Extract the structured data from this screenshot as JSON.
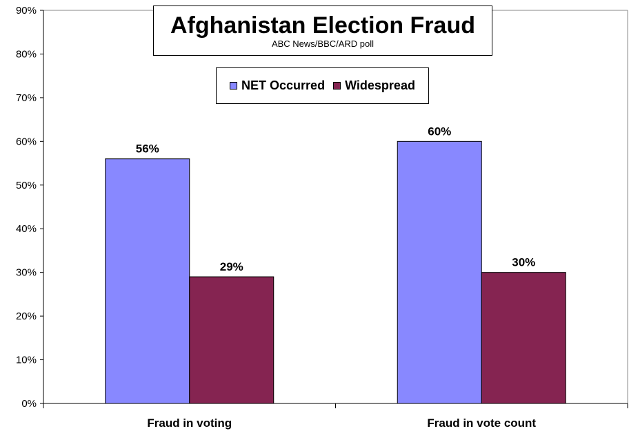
{
  "chart_data": {
    "type": "bar",
    "title": "Afghanistan Election Fraud",
    "subtitle": "ABC News/BBC/ARD poll",
    "categories": [
      "Fraud in voting",
      "Fraud in vote count"
    ],
    "series": [
      {
        "name": "NET Occurred",
        "values": [
          56,
          60
        ],
        "labels": [
          "56%",
          "60%"
        ],
        "color": "#8888ff"
      },
      {
        "name": "Widespread",
        "values": [
          29,
          30
        ],
        "labels": [
          "29%",
          "30%"
        ],
        "color": "#852451"
      }
    ],
    "ylim": [
      0,
      90
    ],
    "yticks": [
      "0%",
      "10%",
      "20%",
      "30%",
      "40%",
      "50%",
      "60%",
      "70%",
      "80%",
      "90%"
    ],
    "grid": false,
    "legend_position": "top-center"
  }
}
